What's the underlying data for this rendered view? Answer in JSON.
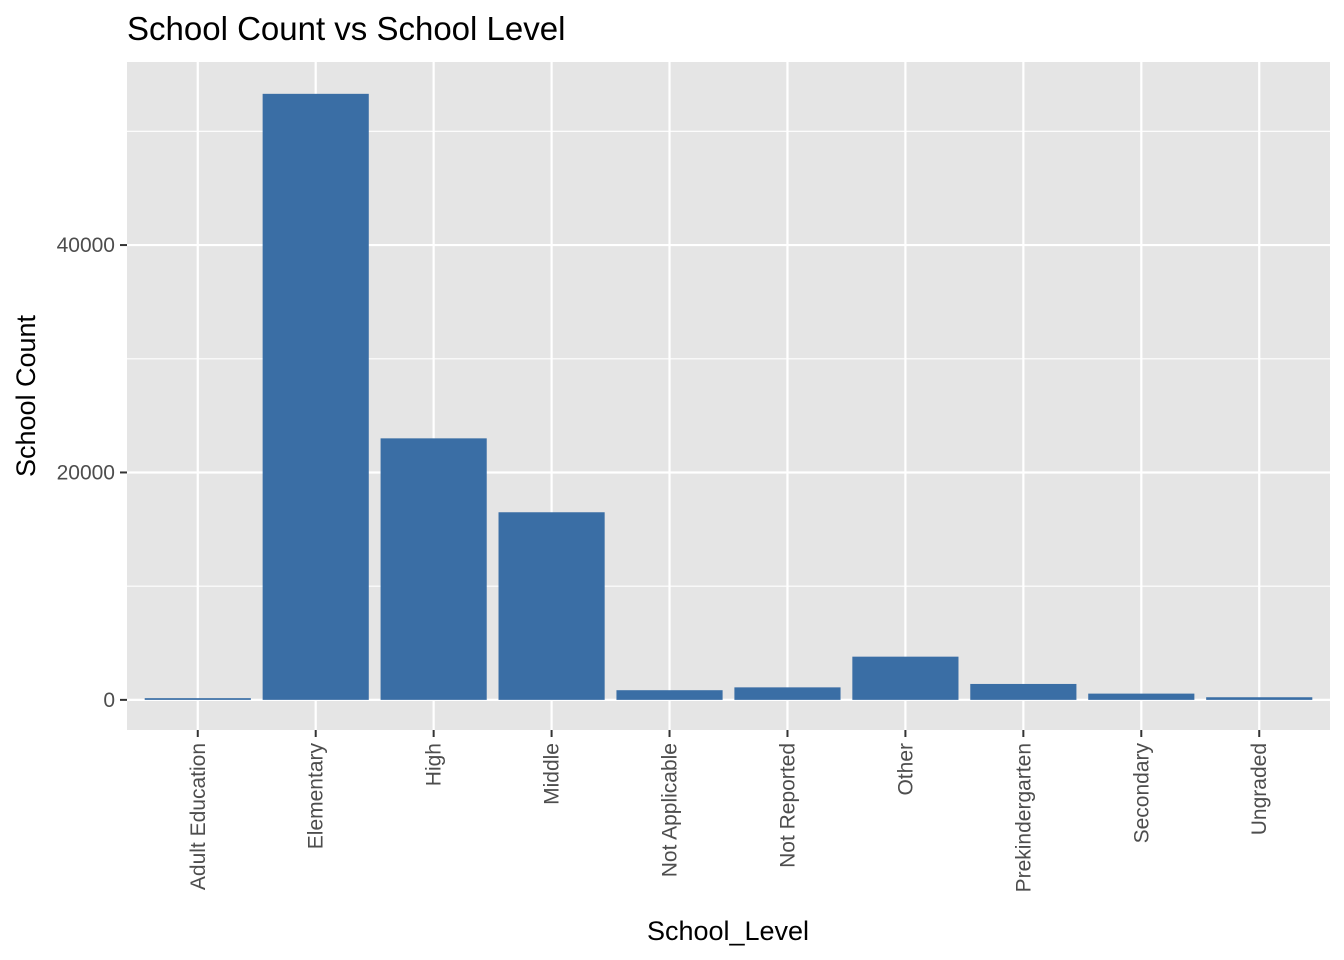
{
  "chart_data": {
    "type": "bar",
    "title": "School Count vs School Level",
    "xlabel": "School_Level",
    "ylabel": "School Count",
    "categories": [
      "Adult Education",
      "Elementary",
      "High",
      "Middle",
      "Not Applicable",
      "Not Reported",
      "Other",
      "Prekindergarten",
      "Secondary",
      "Ungraded"
    ],
    "values": [
      150,
      53300,
      23000,
      16500,
      850,
      1100,
      3800,
      1400,
      550,
      230
    ],
    "yticks": [
      0,
      20000,
      40000
    ],
    "ytick_labels": [
      "0",
      "20000",
      "40000"
    ],
    "ylim": [
      -2650,
      56100
    ],
    "grid": true,
    "bar_color": "#3a6ea5",
    "panel_color": "#e5e5e5",
    "grid_color": "#ffffff"
  }
}
